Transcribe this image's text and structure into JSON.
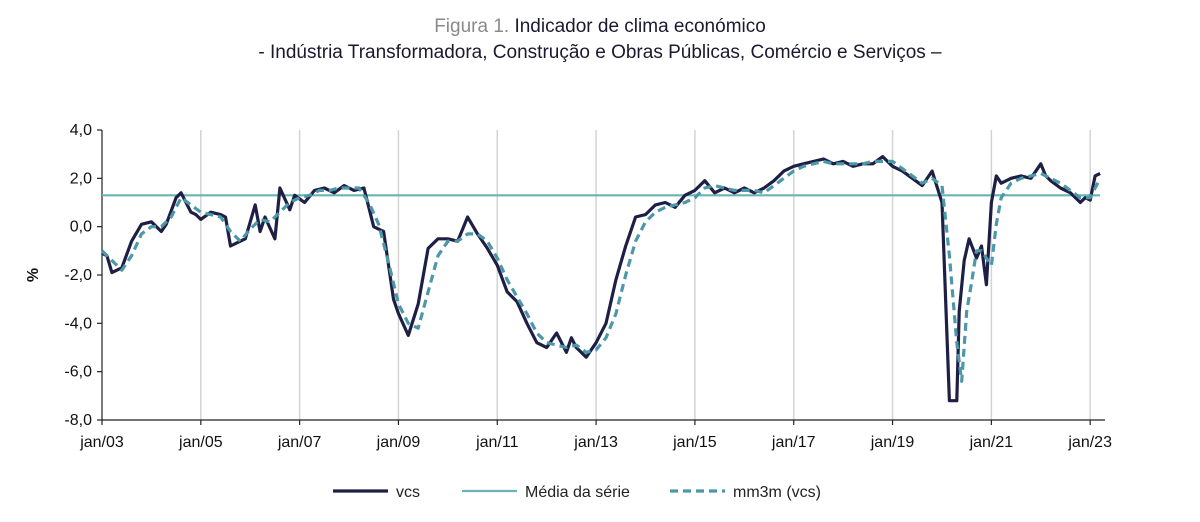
{
  "title": {
    "prefix": "Figura 1.",
    "main": "Indicador de clima económico",
    "subtitle": "- Indústria Transformadora, Construção e Obras Públicas, Comércio e Serviços –"
  },
  "colors": {
    "vcs": "#1e1f45",
    "media": "#6ab3b3",
    "mm3m": "#4d98a8",
    "grid": "#d4d4d4",
    "axis": "#222222"
  },
  "chart_data": {
    "type": "line",
    "ylabel": "%",
    "xlabel": "",
    "ylim": [
      -8,
      4
    ],
    "y_ticks": [
      "4,0",
      "2,0",
      "0,0",
      "-2,0",
      "-4,0",
      "-6,0",
      "-8,0"
    ],
    "y_tick_values": [
      4,
      2,
      0,
      -2,
      -4,
      -6,
      -8
    ],
    "x_ticks": [
      "jan/03",
      "jan/05",
      "jan/07",
      "jan/09",
      "jan/11",
      "jan/13",
      "jan/15",
      "jan/17",
      "jan/19",
      "jan/21",
      "jan/23"
    ],
    "x_tick_values": [
      2003,
      2005,
      2007,
      2009,
      2011,
      2013,
      2015,
      2017,
      2019,
      2021,
      2023
    ],
    "x_range": [
      2003,
      2023.3
    ],
    "grid": "vertical",
    "legend_position": "bottom",
    "series": [
      {
        "name": "vcs",
        "style": "solid",
        "x": [
          2003.0,
          2003.1,
          2003.2,
          2003.4,
          2003.6,
          2003.8,
          2004.0,
          2004.2,
          2004.3,
          2004.5,
          2004.6,
          2004.8,
          2004.9,
          2005.0,
          2005.2,
          2005.4,
          2005.5,
          2005.6,
          2005.8,
          2005.9,
          2006.1,
          2006.2,
          2006.3,
          2006.5,
          2006.6,
          2006.8,
          2006.9,
          2007.1,
          2007.3,
          2007.5,
          2007.7,
          2007.9,
          2008.1,
          2008.3,
          2008.5,
          2008.7,
          2008.9,
          2009.0,
          2009.2,
          2009.4,
          2009.6,
          2009.8,
          2010.0,
          2010.2,
          2010.4,
          2010.6,
          2010.8,
          2011.0,
          2011.2,
          2011.4,
          2011.6,
          2011.8,
          2012.0,
          2012.2,
          2012.4,
          2012.5,
          2012.6,
          2012.8,
          2013.0,
          2013.2,
          2013.4,
          2013.6,
          2013.8,
          2014.0,
          2014.2,
          2014.4,
          2014.6,
          2014.8,
          2015.0,
          2015.2,
          2015.4,
          2015.6,
          2015.8,
          2016.0,
          2016.2,
          2016.4,
          2016.6,
          2016.8,
          2017.0,
          2017.2,
          2017.4,
          2017.6,
          2017.8,
          2018.0,
          2018.2,
          2018.4,
          2018.6,
          2018.8,
          2019.0,
          2019.2,
          2019.4,
          2019.6,
          2019.8,
          2020.0,
          2020.15,
          2020.3,
          2020.35,
          2020.45,
          2020.55,
          2020.7,
          2020.8,
          2020.9,
          2021.0,
          2021.1,
          2021.2,
          2021.4,
          2021.6,
          2021.8,
          2022.0,
          2022.1,
          2022.2,
          2022.4,
          2022.6,
          2022.8,
          2022.9,
          2023.0,
          2023.1,
          2023.2
        ],
        "y": [
          -1.1,
          -1.2,
          -1.9,
          -1.7,
          -0.6,
          0.1,
          0.2,
          -0.2,
          0.1,
          1.2,
          1.4,
          0.6,
          0.5,
          0.3,
          0.6,
          0.5,
          0.4,
          -0.8,
          -0.6,
          -0.5,
          0.9,
          -0.2,
          0.4,
          -0.5,
          1.6,
          0.7,
          1.3,
          1.0,
          1.5,
          1.6,
          1.4,
          1.7,
          1.5,
          1.6,
          0.0,
          -0.2,
          -3.0,
          -3.6,
          -4.5,
          -3.2,
          -0.9,
          -0.5,
          -0.5,
          -0.6,
          0.4,
          -0.3,
          -0.9,
          -1.6,
          -2.7,
          -3.1,
          -4.0,
          -4.8,
          -5.0,
          -4.4,
          -5.2,
          -4.6,
          -5.0,
          -5.4,
          -4.8,
          -4.0,
          -2.2,
          -0.8,
          0.4,
          0.5,
          0.9,
          1.0,
          0.8,
          1.3,
          1.5,
          1.9,
          1.4,
          1.6,
          1.4,
          1.6,
          1.4,
          1.6,
          1.9,
          2.3,
          2.5,
          2.6,
          2.7,
          2.8,
          2.6,
          2.7,
          2.5,
          2.6,
          2.6,
          2.9,
          2.5,
          2.3,
          2.0,
          1.7,
          2.3,
          1.0,
          -7.2,
          -7.2,
          -3.5,
          -1.4,
          -0.5,
          -1.3,
          -0.8,
          -2.4,
          1.0,
          2.1,
          1.8,
          2.0,
          2.1,
          2.0,
          2.6,
          2.1,
          1.9,
          1.6,
          1.4,
          1.0,
          1.2,
          1.1,
          2.1,
          2.2
        ]
      },
      {
        "name": "Média da série",
        "style": "solid",
        "x": [
          2003.0,
          2023.2
        ],
        "y": [
          1.3,
          1.3
        ]
      },
      {
        "name": "mm3m (vcs)",
        "style": "dashed",
        "x": [
          2003.0,
          2003.2,
          2003.4,
          2003.6,
          2003.8,
          2004.0,
          2004.2,
          2004.4,
          2004.6,
          2004.8,
          2005.0,
          2005.2,
          2005.4,
          2005.6,
          2005.8,
          2006.0,
          2006.2,
          2006.4,
          2006.6,
          2006.8,
          2007.0,
          2007.2,
          2007.4,
          2007.6,
          2007.8,
          2008.0,
          2008.2,
          2008.4,
          2008.6,
          2008.8,
          2009.0,
          2009.2,
          2009.4,
          2009.6,
          2009.8,
          2010.0,
          2010.2,
          2010.4,
          2010.6,
          2010.8,
          2011.0,
          2011.2,
          2011.4,
          2011.6,
          2011.8,
          2012.0,
          2012.2,
          2012.4,
          2012.6,
          2012.8,
          2013.0,
          2013.2,
          2013.4,
          2013.6,
          2013.8,
          2014.0,
          2014.2,
          2014.4,
          2014.6,
          2014.8,
          2015.0,
          2015.2,
          2015.4,
          2015.6,
          2015.8,
          2016.0,
          2016.2,
          2016.4,
          2016.6,
          2016.8,
          2017.0,
          2017.2,
          2017.4,
          2017.6,
          2017.8,
          2018.0,
          2018.2,
          2018.4,
          2018.6,
          2018.8,
          2019.0,
          2019.2,
          2019.4,
          2019.6,
          2019.8,
          2020.0,
          2020.15,
          2020.3,
          2020.4,
          2020.5,
          2020.6,
          2020.7,
          2020.8,
          2020.9,
          2021.0,
          2021.1,
          2021.2,
          2021.4,
          2021.6,
          2021.8,
          2022.0,
          2022.2,
          2022.4,
          2022.6,
          2022.8,
          2023.0,
          2023.2
        ],
        "y": [
          -1.0,
          -1.4,
          -1.8,
          -1.2,
          -0.3,
          0.0,
          0.0,
          0.4,
          1.2,
          0.9,
          0.6,
          0.5,
          0.4,
          -0.2,
          -0.6,
          -0.1,
          0.3,
          0.2,
          0.6,
          1.0,
          1.2,
          1.3,
          1.5,
          1.5,
          1.6,
          1.6,
          1.6,
          1.0,
          0.1,
          -1.5,
          -3.2,
          -4.0,
          -4.2,
          -2.7,
          -1.2,
          -0.6,
          -0.6,
          -0.3,
          -0.3,
          -0.6,
          -1.3,
          -2.2,
          -2.9,
          -3.6,
          -4.4,
          -4.8,
          -4.9,
          -5.0,
          -4.9,
          -5.2,
          -5.1,
          -4.6,
          -3.6,
          -2.0,
          -0.6,
          0.2,
          0.6,
          0.8,
          0.9,
          1.0,
          1.2,
          1.6,
          1.7,
          1.6,
          1.5,
          1.5,
          1.5,
          1.4,
          1.7,
          2.0,
          2.3,
          2.5,
          2.6,
          2.7,
          2.6,
          2.6,
          2.6,
          2.6,
          2.7,
          2.7,
          2.7,
          2.4,
          2.1,
          1.8,
          2.0,
          1.7,
          -1.2,
          -4.8,
          -6.4,
          -3.5,
          -2.3,
          -1.0,
          -1.0,
          -1.3,
          -1.6,
          0.1,
          1.2,
          1.8,
          2.0,
          2.1,
          2.2,
          2.0,
          1.8,
          1.5,
          1.2,
          1.2,
          2.0
        ]
      }
    ]
  }
}
